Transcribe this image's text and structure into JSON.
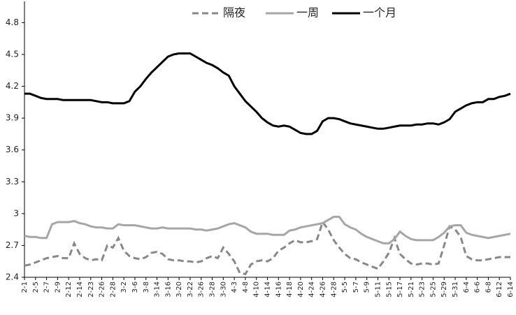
{
  "chart_data": {
    "type": "line",
    "categories": [
      "2-1",
      null,
      "2-5",
      null,
      "2-7",
      null,
      "2-9",
      null,
      "2-12",
      null,
      "2-14",
      null,
      "2-23",
      null,
      "2-26",
      null,
      "2-28",
      null,
      "3-2",
      null,
      "3-6",
      null,
      "3-8",
      null,
      "3-14",
      null,
      "3-16",
      null,
      "3-20",
      null,
      "3-22",
      null,
      "3-26",
      null,
      "3-28",
      null,
      "3-30",
      null,
      "4-3",
      null,
      "4-8",
      null,
      "4-10",
      null,
      "4-14",
      null,
      "4-16",
      null,
      "4-18",
      null,
      "4-20",
      null,
      "4-24",
      null,
      "4-26",
      null,
      "4-28",
      null,
      "5-5",
      null,
      "5-7",
      null,
      "5-9",
      null,
      "5-11",
      null,
      "5-15",
      null,
      "5-17",
      null,
      "5-21",
      null,
      "5-23",
      null,
      "5-25",
      null,
      "5-29",
      null,
      "5-31",
      null,
      "6-4",
      null,
      "6-6",
      null,
      "6-8",
      null,
      "6-12",
      null,
      "6-14"
    ],
    "series": [
      {
        "name": "隔夜",
        "color": "#888888",
        "dash": true,
        "values": [
          2.51,
          2.52,
          2.54,
          2.56,
          2.58,
          2.59,
          2.6,
          2.58,
          2.58,
          2.72,
          2.62,
          2.58,
          2.56,
          2.57,
          2.56,
          2.7,
          2.68,
          2.77,
          2.65,
          2.6,
          2.58,
          2.57,
          2.59,
          2.63,
          2.64,
          2.62,
          2.57,
          2.56,
          2.56,
          2.55,
          2.55,
          2.54,
          2.55,
          2.58,
          2.6,
          2.58,
          2.68,
          2.62,
          2.55,
          2.44,
          2.43,
          2.52,
          2.55,
          2.56,
          2.55,
          2.58,
          2.65,
          2.68,
          2.72,
          2.75,
          2.73,
          2.73,
          2.74,
          2.76,
          2.92,
          2.85,
          2.75,
          2.68,
          2.62,
          2.58,
          2.57,
          2.54,
          2.52,
          2.5,
          2.48,
          2.55,
          2.63,
          2.77,
          2.62,
          2.57,
          2.53,
          2.52,
          2.53,
          2.53,
          2.52,
          2.53,
          2.7,
          2.88,
          2.85,
          2.78,
          2.6,
          2.57,
          2.56,
          2.56,
          2.57,
          2.58,
          2.59,
          2.59,
          2.59
        ]
      },
      {
        "name": "一周",
        "color": "#a6a6a6",
        "dash": false,
        "values": [
          2.79,
          2.78,
          2.78,
          2.77,
          2.77,
          2.9,
          2.92,
          2.92,
          2.92,
          2.93,
          2.91,
          2.9,
          2.88,
          2.87,
          2.87,
          2.86,
          2.86,
          2.9,
          2.89,
          2.89,
          2.89,
          2.88,
          2.87,
          2.86,
          2.86,
          2.87,
          2.86,
          2.86,
          2.86,
          2.86,
          2.86,
          2.85,
          2.85,
          2.84,
          2.85,
          2.86,
          2.88,
          2.9,
          2.91,
          2.89,
          2.87,
          2.83,
          2.81,
          2.81,
          2.81,
          2.8,
          2.8,
          2.8,
          2.84,
          2.85,
          2.87,
          2.88,
          2.89,
          2.9,
          2.91,
          2.94,
          2.97,
          2.97,
          2.9,
          2.87,
          2.85,
          2.81,
          2.78,
          2.76,
          2.74,
          2.72,
          2.72,
          2.76,
          2.83,
          2.79,
          2.76,
          2.75,
          2.75,
          2.75,
          2.75,
          2.78,
          2.82,
          2.88,
          2.89,
          2.89,
          2.82,
          2.8,
          2.79,
          2.78,
          2.77,
          2.78,
          2.79,
          2.8,
          2.81
        ]
      },
      {
        "name": "一个月",
        "color": "#000000",
        "dash": false,
        "values": [
          4.13,
          4.13,
          4.11,
          4.09,
          4.08,
          4.08,
          4.08,
          4.07,
          4.07,
          4.07,
          4.07,
          4.07,
          4.07,
          4.06,
          4.05,
          4.05,
          4.04,
          4.04,
          4.04,
          4.06,
          4.15,
          4.2,
          4.27,
          4.33,
          4.38,
          4.43,
          4.48,
          4.5,
          4.51,
          4.51,
          4.51,
          4.48,
          4.45,
          4.42,
          4.4,
          4.37,
          4.33,
          4.3,
          4.2,
          4.13,
          4.06,
          4.01,
          3.96,
          3.9,
          3.86,
          3.83,
          3.82,
          3.83,
          3.82,
          3.79,
          3.76,
          3.75,
          3.75,
          3.78,
          3.87,
          3.9,
          3.9,
          3.89,
          3.87,
          3.85,
          3.84,
          3.83,
          3.82,
          3.81,
          3.8,
          3.8,
          3.81,
          3.82,
          3.83,
          3.83,
          3.83,
          3.84,
          3.84,
          3.85,
          3.85,
          3.84,
          3.86,
          3.89,
          3.96,
          3.99,
          4.02,
          4.04,
          4.05,
          4.05,
          4.08,
          4.08,
          4.1,
          4.11,
          4.13
        ]
      }
    ],
    "ylim": [
      2.4,
      5.0
    ],
    "yticks": [
      2.4,
      2.7,
      3,
      3.3,
      3.6,
      3.9,
      4.2,
      4.5,
      4.8
    ],
    "grid": false,
    "legend": "top"
  }
}
